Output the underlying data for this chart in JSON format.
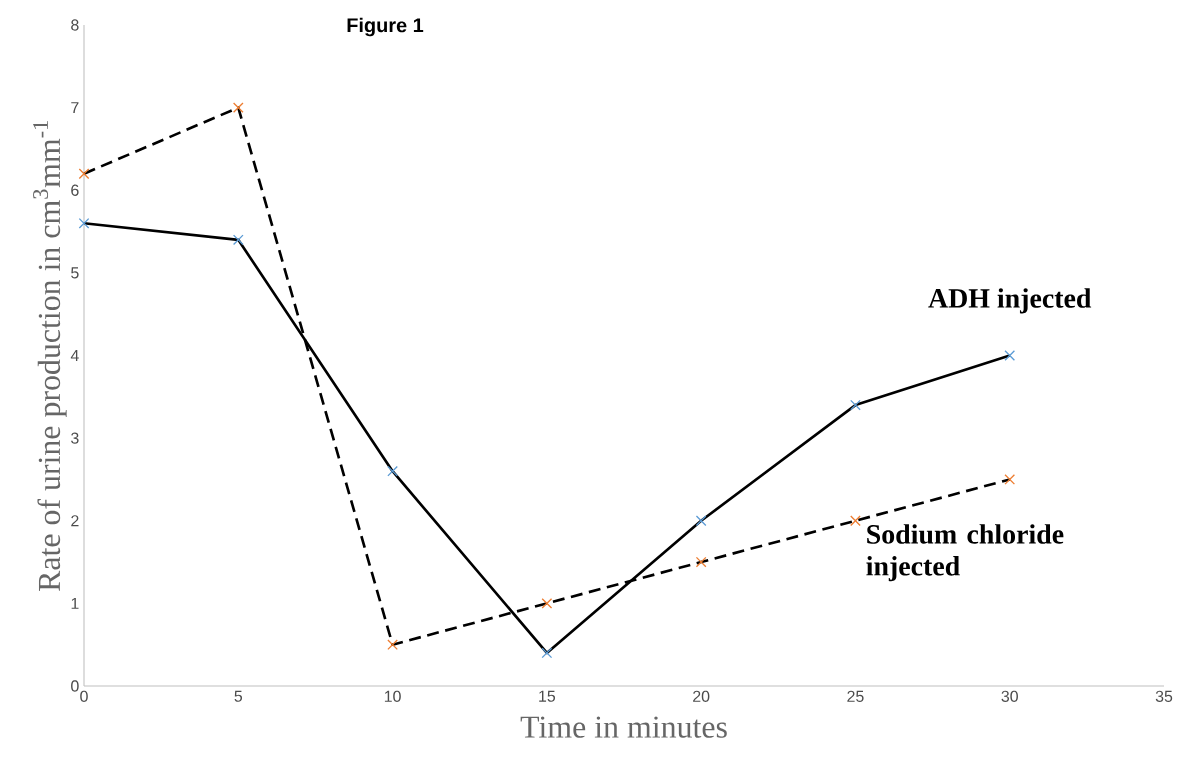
{
  "chart_data": {
    "type": "line",
    "title": "Figure 1",
    "xlabel": "Time in minutes",
    "ylabel": "Rate of urine production in cm$^{3}$mm$^{-1}$",
    "x": [
      0,
      5,
      10,
      15,
      20,
      25,
      30
    ],
    "series": [
      {
        "name": "ADH injected",
        "color": "#000000",
        "line_style": "solid",
        "colors": [
          "#5b9bd5",
          "#5b9bd5",
          "#5b9bd5",
          "#5b9bd5",
          "#5b9bd5",
          "#5b9bd5",
          "#5b9bd5"
        ],
        "values": [
          5.6,
          5.4,
          2.6,
          0.4,
          2.0,
          3.4,
          4.0
        ]
      },
      {
        "name": "Sodium chloride injected",
        "color": "#000000",
        "line_style": "dashed",
        "colors": [
          "#ed7d31",
          "#ed7d31",
          "#ed7d31",
          "#ed7d31",
          "#ed7d31",
          "#ed7d31",
          "#ed7d31"
        ],
        "values": [
          6.2,
          7.0,
          0.5,
          1.0,
          1.5,
          2.0,
          2.5
        ]
      }
    ],
    "xlim": [
      0,
      35
    ],
    "ylim": [
      0,
      8
    ],
    "xticks": [
      0,
      5,
      10,
      15,
      20,
      25,
      30,
      35
    ],
    "yticks": [
      0,
      1,
      2,
      3,
      4,
      5,
      6,
      7,
      8
    ],
    "marker": "cross",
    "grid": false
  }
}
